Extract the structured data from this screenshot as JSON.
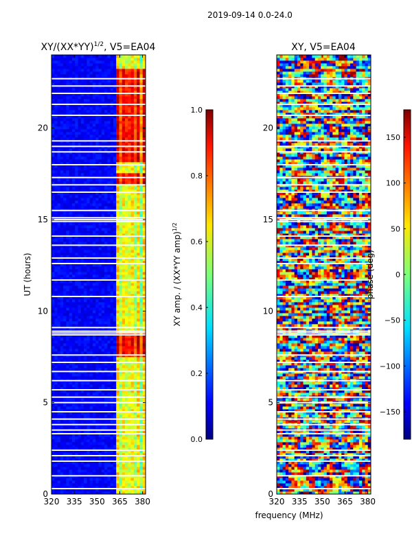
{
  "suptitle": "2019-09-14 0.0-24.0",
  "xlabel_shared": "frequency (MHz)",
  "chart_data": [
    {
      "type": "heatmap",
      "title_main": "XY/(XX*YY)",
      "title_sup": "1/2",
      "title_rest": ", V5=EA04",
      "ylabel": "UT (hours)",
      "xlim": [
        320,
        382
      ],
      "ylim": [
        0,
        24
      ],
      "xticks": [
        "320",
        "335",
        "350",
        "365",
        "380"
      ],
      "xtick_values": [
        320,
        335,
        350,
        365,
        380
      ],
      "yticks": [
        "0",
        "5",
        "10",
        "15",
        "20"
      ],
      "ytick_values": [
        0,
        5,
        10,
        15,
        20
      ],
      "colorbar": {
        "label_main": "XY amp. / (XX*YY amp)",
        "label_sup": "1/2",
        "range": [
          0,
          1
        ],
        "ticks": [
          "0.0",
          "0.2",
          "0.4",
          "0.6",
          "0.8",
          "1.0"
        ],
        "tick_values": [
          0,
          0.2,
          0.4,
          0.6,
          0.8,
          1.0
        ]
      },
      "gaps_hours": [
        0.3,
        1.0,
        1.8,
        2.1,
        2.4,
        3.3,
        3.5,
        3.8,
        4.1,
        4.5,
        5.0,
        5.3,
        5.7,
        6.2,
        6.7,
        7.2,
        7.6,
        8.7,
        8.8,
        8.9,
        9.1,
        10.8,
        11.7,
        12.6,
        12.9,
        13.6,
        14.1,
        14.9,
        15.0,
        15.1,
        15.5,
        16.5,
        16.9,
        17.3,
        18.0,
        18.7,
        19.0,
        19.3,
        20.7,
        21.3,
        21.9,
        22.3,
        22.7
      ]
    },
    {
      "type": "heatmap",
      "title_main": "XY, V5=EA04",
      "xlim": [
        320,
        382
      ],
      "ylim": [
        0,
        24
      ],
      "xticks": [
        "320",
        "335",
        "350",
        "365",
        "380"
      ],
      "xtick_values": [
        320,
        335,
        350,
        365,
        380
      ],
      "yticks": [
        "0",
        "5",
        "10",
        "15",
        "20"
      ],
      "ytick_values": [
        0,
        5,
        10,
        15,
        20
      ],
      "colorbar": {
        "label_main": "phase (deg)",
        "range": [
          -180,
          180
        ],
        "ticks": [
          "−150",
          "−100",
          "−50",
          "0",
          "50",
          "100",
          "150"
        ],
        "tick_values": [
          -150,
          -100,
          -50,
          0,
          50,
          100,
          150
        ]
      },
      "gaps_hours": [
        0.3,
        1.0,
        1.8,
        2.1,
        2.4,
        3.3,
        3.5,
        3.8,
        4.1,
        4.5,
        5.0,
        5.3,
        5.7,
        6.2,
        6.7,
        7.2,
        7.6,
        8.7,
        8.8,
        8.9,
        9.1,
        10.8,
        11.7,
        12.6,
        12.9,
        13.6,
        14.1,
        14.9,
        15.0,
        15.1,
        15.5,
        16.5,
        16.9,
        17.3,
        18.0,
        18.7,
        19.0,
        19.3,
        20.7,
        21.3,
        21.9,
        22.3,
        22.7
      ]
    }
  ]
}
